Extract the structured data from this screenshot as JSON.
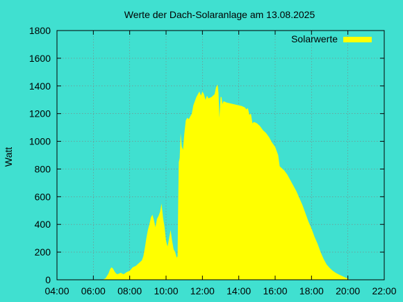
{
  "chart_data": {
    "type": "area",
    "title": "Werte der Dach-Solaranlage am 13.08.2025",
    "xlabel": "",
    "ylabel": "Watt",
    "xlim": [
      "04:00",
      "22:00"
    ],
    "ylim": [
      0,
      1800
    ],
    "x_ticks": [
      "04:00",
      "06:00",
      "08:00",
      "10:00",
      "12:00",
      "14:00",
      "16:00",
      "18:00",
      "20:00",
      "22:00"
    ],
    "y_ticks": [
      0,
      200,
      400,
      600,
      800,
      1000,
      1200,
      1400,
      1600,
      1800
    ],
    "grid": true,
    "legend_position": "top-right",
    "colors": {
      "background": "#40e0d0",
      "series": "#ffff00"
    },
    "series": [
      {
        "name": "Solarwerte",
        "points": [
          [
            "06:30",
            0
          ],
          [
            "06:40",
            10
          ],
          [
            "06:50",
            45
          ],
          [
            "06:55",
            75
          ],
          [
            "07:00",
            90
          ],
          [
            "07:05",
            80
          ],
          [
            "07:10",
            60
          ],
          [
            "07:15",
            45
          ],
          [
            "07:20",
            40
          ],
          [
            "07:30",
            50
          ],
          [
            "07:40",
            40
          ],
          [
            "07:50",
            55
          ],
          [
            "08:00",
            65
          ],
          [
            "08:10",
            90
          ],
          [
            "08:20",
            100
          ],
          [
            "08:30",
            120
          ],
          [
            "08:40",
            140
          ],
          [
            "08:45",
            170
          ],
          [
            "08:50",
            230
          ],
          [
            "08:55",
            300
          ],
          [
            "09:00",
            360
          ],
          [
            "09:05",
            400
          ],
          [
            "09:10",
            450
          ],
          [
            "09:15",
            470
          ],
          [
            "09:20",
            430
          ],
          [
            "09:25",
            380
          ],
          [
            "09:30",
            440
          ],
          [
            "09:35",
            460
          ],
          [
            "09:40",
            490
          ],
          [
            "09:45",
            550
          ],
          [
            "09:50",
            450
          ],
          [
            "09:55",
            380
          ],
          [
            "10:00",
            280
          ],
          [
            "10:05",
            240
          ],
          [
            "10:10",
            300
          ],
          [
            "10:15",
            360
          ],
          [
            "10:20",
            280
          ],
          [
            "10:25",
            220
          ],
          [
            "10:30",
            200
          ],
          [
            "10:35",
            160
          ],
          [
            "10:38",
            170
          ],
          [
            "10:40",
            550
          ],
          [
            "10:42",
            850
          ],
          [
            "10:45",
            880
          ],
          [
            "10:48",
            1060
          ],
          [
            "10:52",
            960
          ],
          [
            "10:56",
            940
          ],
          [
            "11:00",
            1050
          ],
          [
            "11:05",
            1150
          ],
          [
            "11:10",
            1170
          ],
          [
            "11:15",
            1160
          ],
          [
            "11:20",
            1180
          ],
          [
            "11:25",
            1200
          ],
          [
            "11:30",
            1260
          ],
          [
            "11:35",
            1290
          ],
          [
            "11:40",
            1320
          ],
          [
            "11:45",
            1340
          ],
          [
            "11:50",
            1360
          ],
          [
            "11:55",
            1330
          ],
          [
            "12:00",
            1360
          ],
          [
            "12:05",
            1340
          ],
          [
            "12:10",
            1300
          ],
          [
            "12:15",
            1330
          ],
          [
            "12:20",
            1310
          ],
          [
            "12:30",
            1320
          ],
          [
            "12:40",
            1340
          ],
          [
            "12:45",
            1390
          ],
          [
            "12:50",
            1410
          ],
          [
            "12:53",
            1350
          ],
          [
            "12:56",
            1170
          ],
          [
            "13:00",
            1320
          ],
          [
            "13:03",
            1320
          ],
          [
            "13:06",
            1270
          ],
          [
            "13:10",
            1290
          ],
          [
            "13:20",
            1280
          ],
          [
            "13:30",
            1275
          ],
          [
            "13:40",
            1270
          ],
          [
            "13:50",
            1265
          ],
          [
            "14:00",
            1260
          ],
          [
            "14:10",
            1255
          ],
          [
            "14:20",
            1245
          ],
          [
            "14:25",
            1230
          ],
          [
            "14:30",
            1240
          ],
          [
            "14:35",
            1190
          ],
          [
            "14:40",
            1200
          ],
          [
            "14:45",
            1130
          ],
          [
            "14:50",
            1140
          ],
          [
            "15:00",
            1130
          ],
          [
            "15:10",
            1110
          ],
          [
            "15:20",
            1080
          ],
          [
            "15:30",
            1060
          ],
          [
            "15:40",
            1030
          ],
          [
            "15:50",
            990
          ],
          [
            "16:00",
            960
          ],
          [
            "16:10",
            900
          ],
          [
            "16:15",
            820
          ],
          [
            "16:20",
            810
          ],
          [
            "16:30",
            790
          ],
          [
            "16:40",
            760
          ],
          [
            "16:50",
            720
          ],
          [
            "17:00",
            680
          ],
          [
            "17:10",
            640
          ],
          [
            "17:20",
            590
          ],
          [
            "17:30",
            540
          ],
          [
            "17:40",
            480
          ],
          [
            "17:50",
            420
          ],
          [
            "18:00",
            370
          ],
          [
            "18:10",
            310
          ],
          [
            "18:20",
            260
          ],
          [
            "18:30",
            200
          ],
          [
            "18:40",
            150
          ],
          [
            "18:50",
            110
          ],
          [
            "19:00",
            85
          ],
          [
            "19:10",
            65
          ],
          [
            "19:20",
            50
          ],
          [
            "19:30",
            38
          ],
          [
            "19:40",
            28
          ],
          [
            "19:50",
            18
          ],
          [
            "20:00",
            8
          ],
          [
            "20:05",
            0
          ]
        ]
      }
    ]
  }
}
